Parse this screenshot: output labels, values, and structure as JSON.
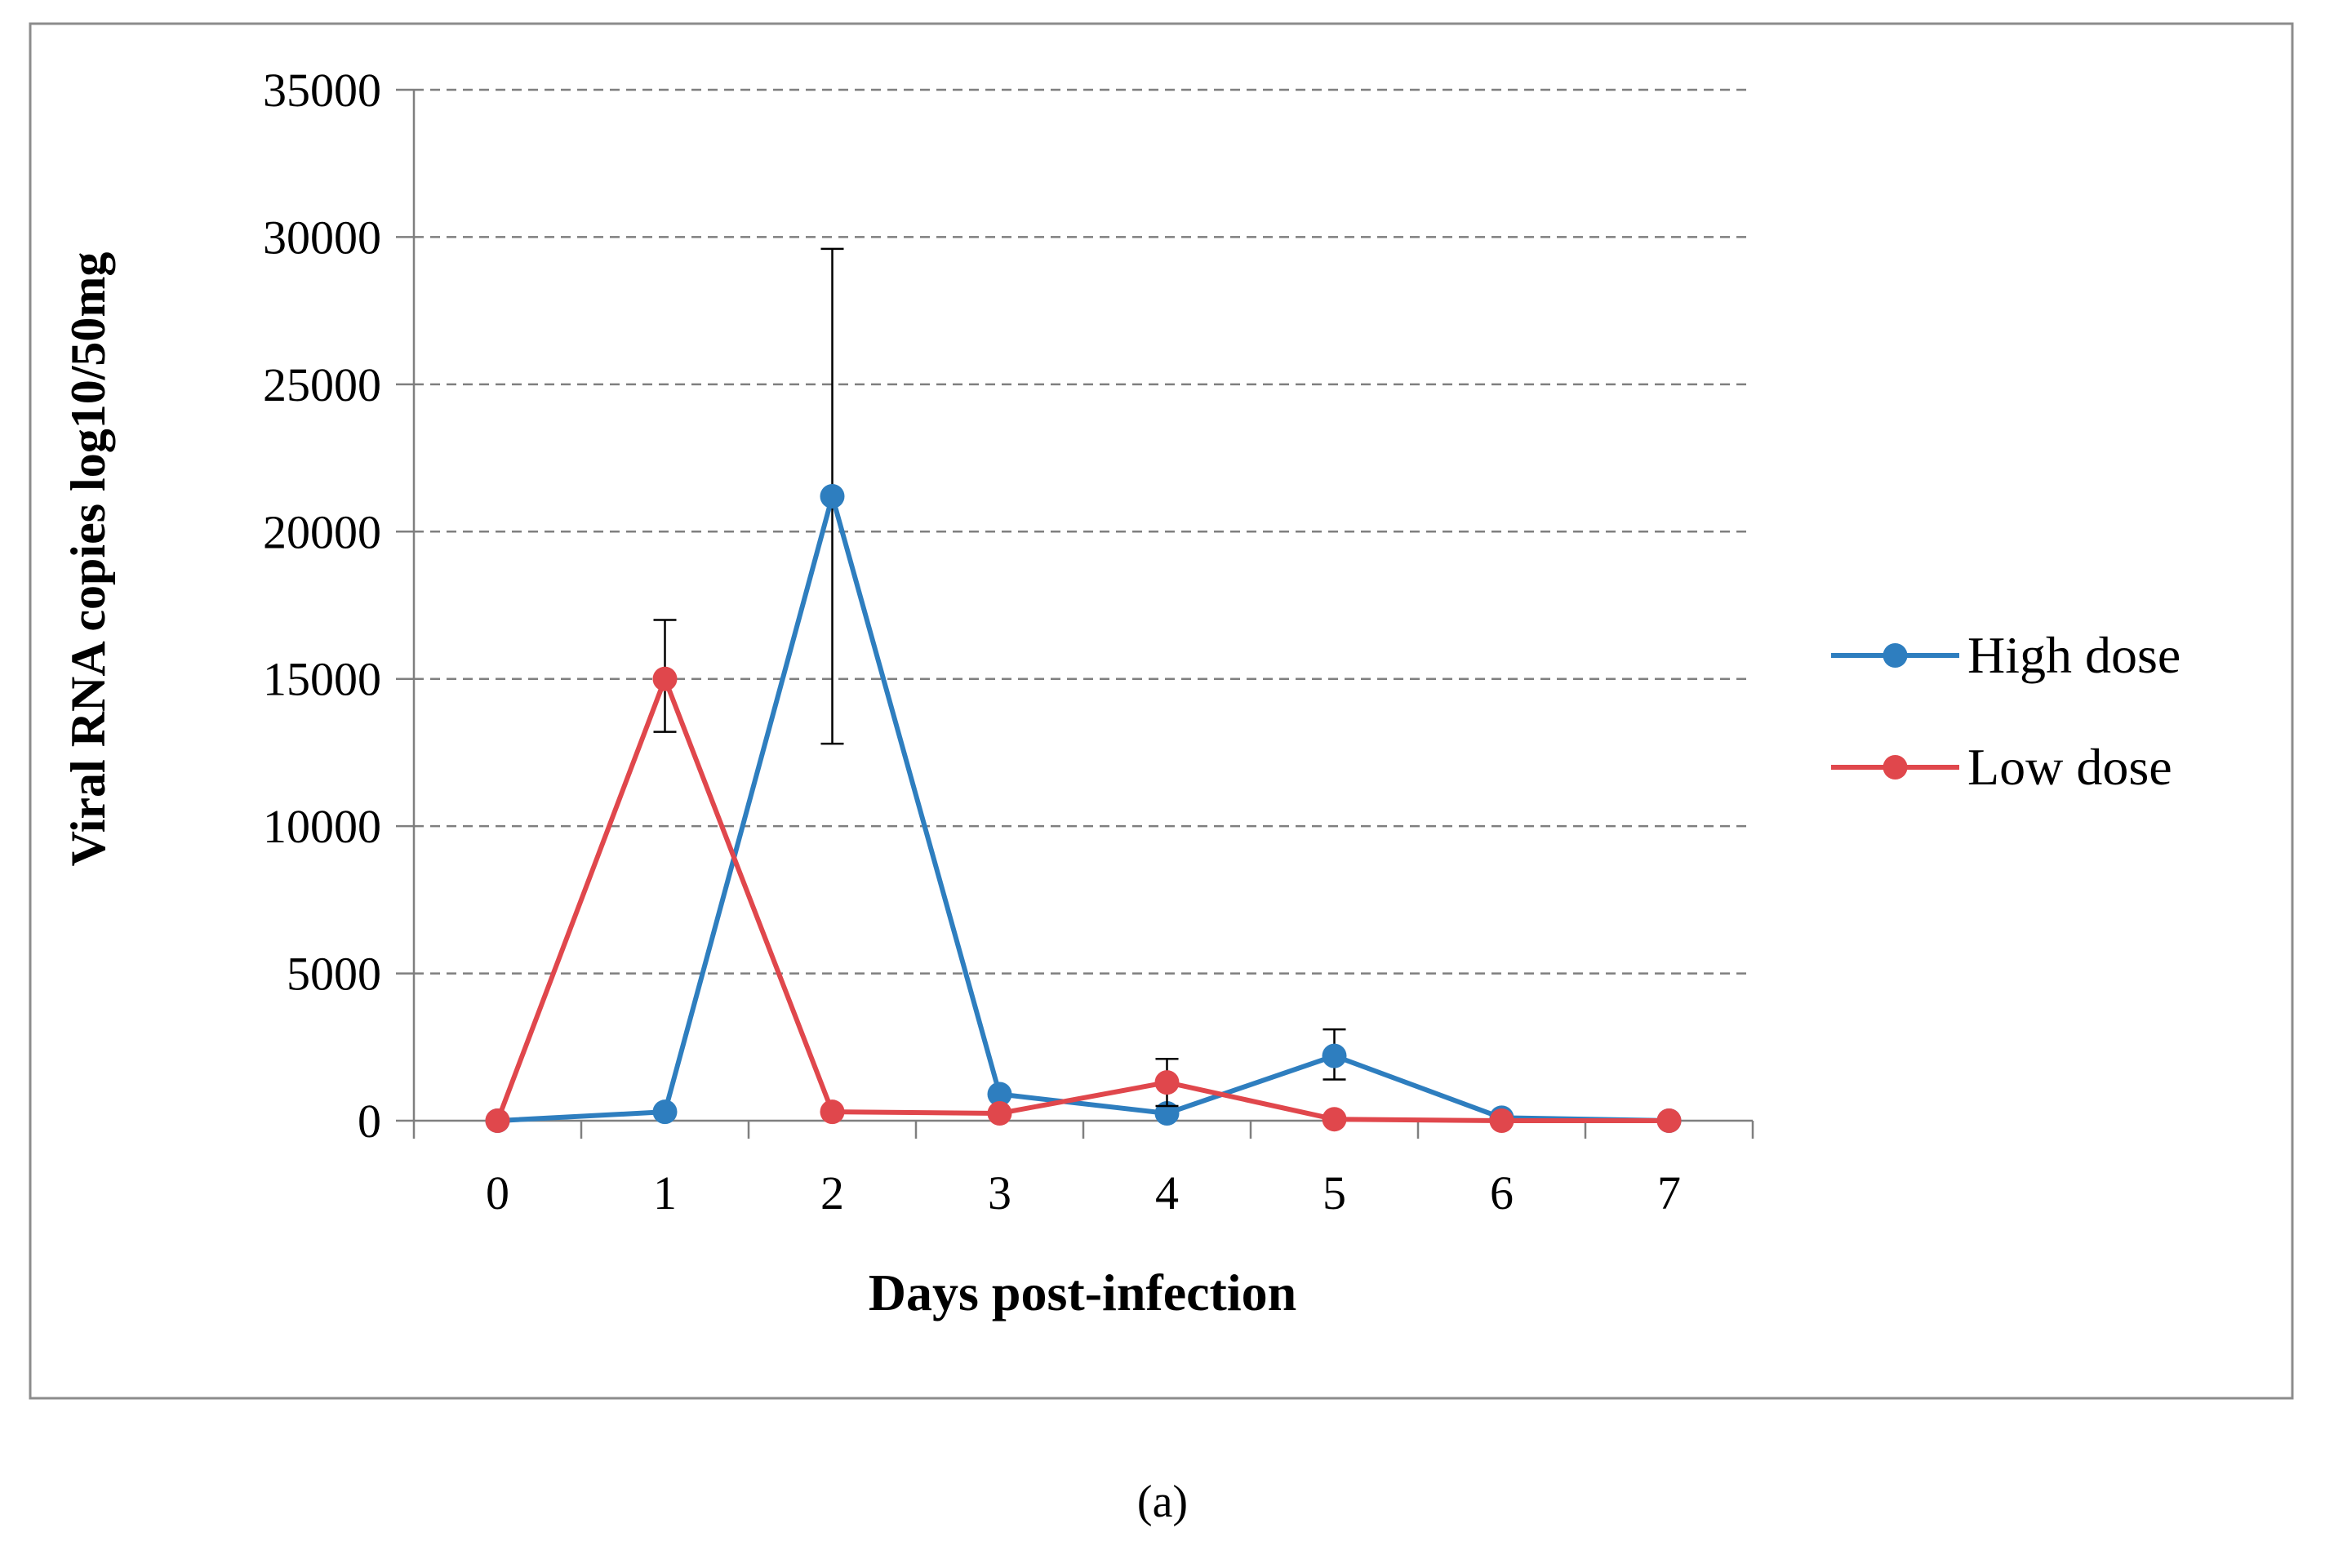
{
  "caption": "(a)",
  "colors": {
    "high": "#2E7EBF",
    "low": "#E0474C",
    "grid": "#7f7f7f",
    "axis": "#7f7f7f",
    "error": "#000000"
  },
  "chart_data": {
    "type": "line",
    "xlabel": "Days post-infection",
    "ylabel": "Viral RNA copies log10/50mg",
    "ylim": [
      0,
      35000
    ],
    "yticks": [
      0,
      5000,
      10000,
      15000,
      20000,
      25000,
      30000,
      35000
    ],
    "ytick_labels": [
      "0",
      "5000",
      "10000",
      "15000",
      "20000",
      "25000",
      "30000",
      "35000"
    ],
    "categories": [
      "0",
      "1",
      "2",
      "3",
      "4",
      "5",
      "6",
      "7"
    ],
    "grid": "horizontal dashed",
    "legend": "right",
    "series": [
      {
        "name": "High dose",
        "values": [
          0,
          300,
          21200,
          900,
          250,
          2200,
          100,
          0
        ],
        "error_bars": [
          null,
          null,
          {
            "low": 12800,
            "high": 29600
          },
          null,
          null,
          {
            "low": 1400,
            "high": 3100
          },
          null,
          null
        ]
      },
      {
        "name": "Low dose",
        "values": [
          0,
          15000,
          300,
          250,
          1300,
          50,
          0,
          0
        ],
        "error_bars": [
          null,
          {
            "low": 13200,
            "high": 17000
          },
          null,
          null,
          {
            "low": 500,
            "high": 2100
          },
          null,
          null,
          null
        ]
      }
    ]
  }
}
